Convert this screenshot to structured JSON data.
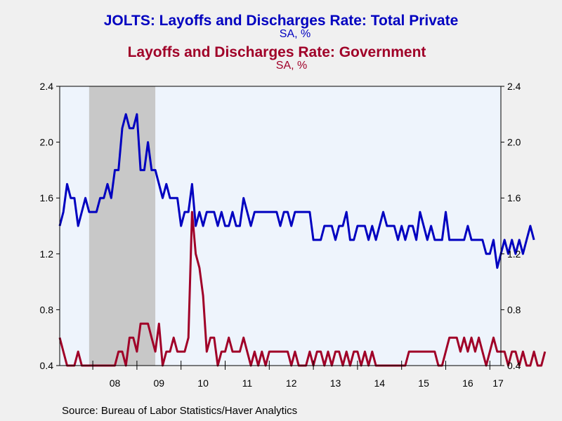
{
  "titles": {
    "line1": "JOLTS: Layoffs and Discharges Rate: Total Private",
    "line1_sub": "SA, %",
    "line2": "Layoffs and Discharges Rate: Government",
    "line2_sub": "SA, %"
  },
  "source": "Source:  Bureau of Labor Statistics/Haver Analytics",
  "colors": {
    "private": "#0000c0",
    "government": "#a00028",
    "recession": "#c8c8c8",
    "plot_bg": "#eef4fc",
    "page_bg": "#f0f0f0"
  },
  "chart_data": {
    "type": "line",
    "x_start": "2007-04",
    "x_end": "2017-04",
    "xticks": [
      "08",
      "09",
      "10",
      "11",
      "12",
      "13",
      "14",
      "15",
      "16",
      "17"
    ],
    "yticks": [
      "0.4",
      "0.8",
      "1.2",
      "1.6",
      "2.0",
      "2.4"
    ],
    "ylim": [
      0.4,
      2.4
    ],
    "recession_shading": [
      "2007-12",
      "2009-06"
    ],
    "series": [
      {
        "name": "JOLTS: Layoffs and Discharges Rate: Total Private",
        "values": [
          1.4,
          1.5,
          1.7,
          1.6,
          1.6,
          1.4,
          1.5,
          1.6,
          1.5,
          1.5,
          1.5,
          1.6,
          1.6,
          1.7,
          1.6,
          1.8,
          1.8,
          2.1,
          2.2,
          2.1,
          2.1,
          2.2,
          1.8,
          1.8,
          2.0,
          1.8,
          1.8,
          1.7,
          1.6,
          1.7,
          1.6,
          1.6,
          1.6,
          1.4,
          1.5,
          1.5,
          1.7,
          1.4,
          1.5,
          1.4,
          1.5,
          1.5,
          1.5,
          1.4,
          1.5,
          1.4,
          1.4,
          1.5,
          1.4,
          1.4,
          1.6,
          1.5,
          1.4,
          1.5,
          1.5,
          1.5,
          1.5,
          1.5,
          1.5,
          1.5,
          1.4,
          1.5,
          1.5,
          1.4,
          1.5,
          1.5,
          1.5,
          1.5,
          1.5,
          1.3,
          1.3,
          1.3,
          1.4,
          1.4,
          1.4,
          1.3,
          1.4,
          1.4,
          1.5,
          1.3,
          1.3,
          1.4,
          1.4,
          1.4,
          1.3,
          1.4,
          1.3,
          1.4,
          1.5,
          1.4,
          1.4,
          1.4,
          1.3,
          1.4,
          1.3,
          1.4,
          1.4,
          1.3,
          1.5,
          1.4,
          1.3,
          1.4,
          1.3,
          1.3,
          1.3,
          1.5,
          1.3,
          1.3,
          1.3,
          1.3,
          1.3,
          1.4,
          1.3,
          1.3,
          1.3,
          1.3,
          1.2,
          1.2,
          1.3,
          1.1,
          1.2,
          1.3,
          1.2,
          1.3,
          1.2,
          1.3,
          1.2,
          1.3,
          1.4,
          1.3
        ]
      },
      {
        "name": "Layoffs and Discharges Rate: Government",
        "values": [
          0.6,
          0.5,
          0.4,
          0.4,
          0.4,
          0.5,
          0.4,
          0.4,
          0.4,
          0.4,
          0.4,
          0.4,
          0.4,
          0.4,
          0.4,
          0.4,
          0.5,
          0.5,
          0.4,
          0.6,
          0.6,
          0.5,
          0.7,
          0.7,
          0.7,
          0.6,
          0.5,
          0.7,
          0.4,
          0.5,
          0.5,
          0.6,
          0.5,
          0.5,
          0.5,
          0.6,
          1.5,
          1.2,
          1.1,
          0.9,
          0.5,
          0.6,
          0.6,
          0.4,
          0.5,
          0.5,
          0.6,
          0.5,
          0.5,
          0.5,
          0.6,
          0.5,
          0.4,
          0.5,
          0.4,
          0.5,
          0.4,
          0.5,
          0.5,
          0.5,
          0.5,
          0.5,
          0.5,
          0.4,
          0.5,
          0.4,
          0.4,
          0.4,
          0.5,
          0.4,
          0.5,
          0.5,
          0.4,
          0.5,
          0.4,
          0.5,
          0.5,
          0.4,
          0.5,
          0.4,
          0.5,
          0.5,
          0.4,
          0.5,
          0.4,
          0.5,
          0.4,
          0.4,
          0.4,
          0.4,
          0.4,
          0.4,
          0.4,
          0.4,
          0.4,
          0.5,
          0.5,
          0.5,
          0.5,
          0.5,
          0.5,
          0.5,
          0.5,
          0.4,
          0.4,
          0.5,
          0.6,
          0.6,
          0.6,
          0.5,
          0.6,
          0.5,
          0.6,
          0.5,
          0.6,
          0.5,
          0.4,
          0.5,
          0.6,
          0.5,
          0.5,
          0.5,
          0.4,
          0.5,
          0.5,
          0.4,
          0.5,
          0.4,
          0.4,
          0.5,
          0.4,
          0.4,
          0.5
        ]
      }
    ]
  }
}
